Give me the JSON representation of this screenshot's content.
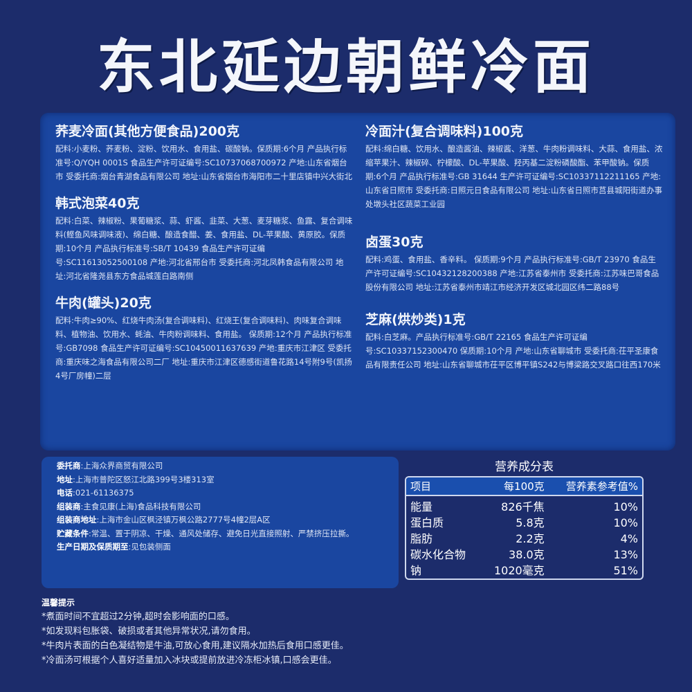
{
  "title": "东北延边朝鲜冷面",
  "left_sections": [
    {
      "heading": "荞麦冷面(其他方便食品)200克",
      "text": "配料:小麦粉、荞麦粉、淀粉、饮用水、食用盐、碳酸钠。保质期:6个月 产品执行标准号:Q/YQH 0001S 食品生产许可证编号:SC10737068700972 产地:山东省烟台市 受委托商:烟台青湖食品有限公司 地址:山东省烟台市海阳市二十里店镇中兴大街北"
    },
    {
      "heading": "韩式泡菜40克",
      "text": "配料:白菜、辣椒粉、果葡糖浆、蒜、虾酱、韭菜、大葱、麦芽糖浆、鱼露、复合调味料(鲣鱼风味调味液)、绵白糖、酿造食醋、姜、食用盐、DL-苹果酸、黄原胶。保质期:10个月 产品执行标准号:SB/T 10439 食品生产许可证编号:SC11613052500108 产地:河北省邢台市 受委托商:河北凤韩食品有限公司 地址:河北省隆尧县东方食品城莲白路南侧"
    },
    {
      "heading": "牛肉(罐头)20克",
      "text": "配料:牛肉≥90%、红烧牛肉汤(复合调味料)、红烧王(复合调味料)、肉味复合调味料、植物油、饮用水、蚝油、牛肉粉调味料、食用盐。 保质期:12个月 产品执行标准号:GB7098 食品生产许可证编号:SC10450011637639 产地:重庆市江津区 受委托商:重庆味之海食品有限公司二厂 地址:重庆市江津区德感街道鲁花路14号附9号(凯扬4号厂房幢)二层"
    }
  ],
  "right_sections": [
    {
      "heading": "冷面汁(复合调味料)100克",
      "text": "配料:绵白糖、饮用水、酿造酱油、辣椒酱、洋葱、牛肉粉调味料、大蒜、食用盐、浓缩苹果汁、辣椒碎、柠檬酸、DL-苹果酸、羟丙基二淀粉磷酸酯、苯甲酸钠。保质期:6个月 产品执行标准号:GB 31644 生产许可证编号:SC10337112211165 产地:山东省日照市 受委托商:日照元日食品有限公司 地址:山东省日照市莒县城阳街道办事处墩头社区蔬菜工业园"
    },
    {
      "heading": "卤蛋30克",
      "text": "配料:鸡蛋、食用盐、香辛料。 保质期:9个月 产品执行标准号:GB/T 23970 食品生产许可证编号:SC10432128200388 产地:江苏省泰州市 受委托商:江苏味巴哥食品股份有限公司 地址:江苏省泰州市靖江市经济开发区城北园区纬二路88号"
    },
    {
      "heading": "芝麻(烘炒类)1克",
      "text": "配料:白芝麻。产品执行标准号:GB/T 22165 食品生产许可证编号:SC10337152300470 保质期:10个月 产地:山东省聊城市 受委托商:茌平圣康食品有限责任公司 地址:山东省聊城市茌平区博平镇S242与博梁路交叉路口往西170米"
    }
  ],
  "info": [
    {
      "label": "委托商",
      "value": ":上海众界商贸有限公司"
    },
    {
      "label": "地址",
      "value": ":上海市普陀区怒江北路399号3楼313室"
    },
    {
      "label": "电话",
      "value": ":021-61136375"
    },
    {
      "label": "组装商",
      "value": ":主食见康(上海)食品科技有限公司"
    },
    {
      "label": "组装商地址",
      "value": ":上海市金山区枫泾镇万枫公路2777号4幢2层A区"
    },
    {
      "label": "贮藏条件",
      "value": ":常温、置于阴凉、干燥、通风处储存、避免日光直接照射、严禁挤压拉撕。"
    },
    {
      "label": "生产日期及保质期至",
      "value": ":见包装侧面"
    }
  ],
  "nutrition": {
    "title": "营养成分表",
    "headers": [
      "项目",
      "每100克",
      "营养素参考值%"
    ],
    "rows": [
      [
        "能量",
        "826千焦",
        "10%"
      ],
      [
        "蛋白质",
        "5.8克",
        "10%"
      ],
      [
        "脂肪",
        "2.2克",
        "4%"
      ],
      [
        "碳水化合物",
        "38.0克",
        "13%"
      ],
      [
        "钠",
        "1020毫克",
        "51%"
      ]
    ]
  },
  "tips": {
    "title": "温馨提示",
    "items": [
      "*煮面时间不宜超过2分钟,超时会影响面的口感。",
      "*如发现料包胀袋、破损或者其他异常状况,请勿食用。",
      "*牛肉片表面的白色凝结物是牛油,可放心食用,建议隔水加热后食用口感更佳。",
      "*冷面汤可根据个人喜好适量加入冰块或提前放进冷冻柜冰镇,口感会更佳。"
    ]
  }
}
